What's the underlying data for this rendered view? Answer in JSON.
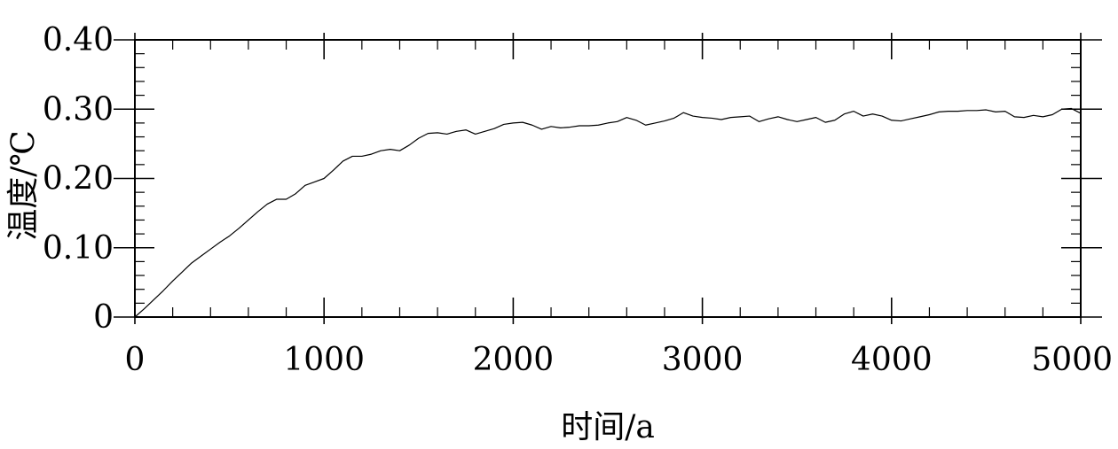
{
  "chart_data": {
    "type": "line",
    "title": "",
    "xlabel": "时间/a",
    "ylabel": "温度/℃",
    "xlim": [
      0,
      5000
    ],
    "ylim": [
      0,
      0.4
    ],
    "xticks": [
      0,
      1000,
      2000,
      3000,
      4000,
      5000
    ],
    "xtick_labels": [
      "0",
      "1000",
      "2000",
      "3000",
      "4000",
      "5000"
    ],
    "yticks": [
      0,
      0.1,
      0.2,
      0.3,
      0.4
    ],
    "ytick_labels": [
      "0",
      "0.10",
      "0.20",
      "0.30",
      "0.40"
    ],
    "x_minor_step": 200,
    "y_minor_step": 0.02,
    "grid": false,
    "line_color": "#000000",
    "series": [
      {
        "x": [
          0,
          50,
          100,
          150,
          200,
          250,
          300,
          350,
          400,
          450,
          500,
          550,
          600,
          650,
          700,
          750,
          800,
          850,
          900,
          950,
          1000,
          1050,
          1100,
          1150,
          1200,
          1250,
          1300,
          1350,
          1400,
          1450,
          1500,
          1550,
          1600,
          1650,
          1700,
          1750,
          1800,
          1850,
          1900,
          1950,
          2000,
          2050,
          2100,
          2150,
          2200,
          2250,
          2300,
          2350,
          2400,
          2450,
          2500,
          2550,
          2600,
          2650,
          2700,
          2750,
          2800,
          2850,
          2900,
          2950,
          3000,
          3050,
          3100,
          3150,
          3200,
          3250,
          3300,
          3350,
          3400,
          3450,
          3500,
          3550,
          3600,
          3650,
          3700,
          3750,
          3800,
          3850,
          3900,
          3950,
          4000,
          4050,
          4100,
          4150,
          4200,
          4250,
          4300,
          4350,
          4400,
          4450,
          4500,
          4550,
          4600,
          4650,
          4700,
          4750,
          4800,
          4850,
          4900,
          4950,
          5000
        ],
        "y": [
          0.0,
          0.012,
          0.025,
          0.038,
          0.052,
          0.065,
          0.078,
          0.088,
          0.098,
          0.108,
          0.117,
          0.128,
          0.14,
          0.152,
          0.163,
          0.17,
          0.17,
          0.178,
          0.19,
          0.195,
          0.2,
          0.212,
          0.225,
          0.232,
          0.232,
          0.235,
          0.24,
          0.242,
          0.24,
          0.248,
          0.258,
          0.265,
          0.266,
          0.264,
          0.268,
          0.27,
          0.264,
          0.268,
          0.272,
          0.278,
          0.28,
          0.281,
          0.277,
          0.271,
          0.275,
          0.273,
          0.274,
          0.276,
          0.276,
          0.277,
          0.28,
          0.282,
          0.288,
          0.284,
          0.277,
          0.28,
          0.283,
          0.287,
          0.295,
          0.29,
          0.288,
          0.287,
          0.285,
          0.288,
          0.289,
          0.29,
          0.282,
          0.286,
          0.289,
          0.285,
          0.282,
          0.285,
          0.288,
          0.281,
          0.284,
          0.293,
          0.297,
          0.29,
          0.293,
          0.29,
          0.284,
          0.283,
          0.286,
          0.289,
          0.292,
          0.296,
          0.297,
          0.297,
          0.298,
          0.298,
          0.299,
          0.296,
          0.297,
          0.289,
          0.288,
          0.291,
          0.289,
          0.292,
          0.3,
          0.301,
          0.294
        ]
      }
    ]
  }
}
